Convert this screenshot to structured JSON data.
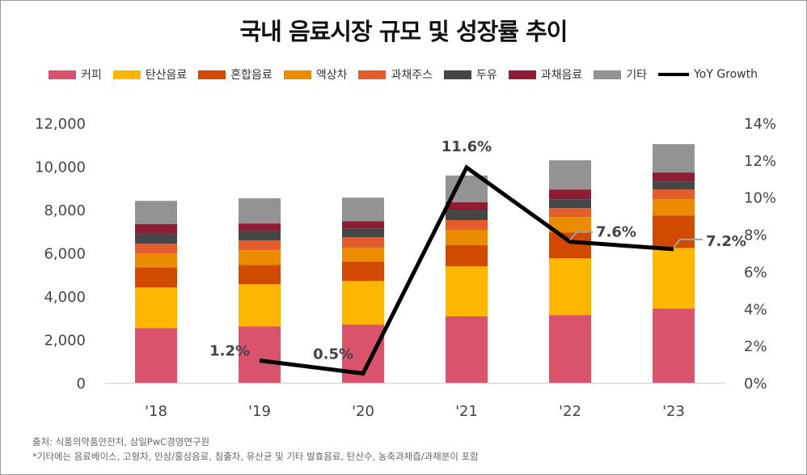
{
  "chart_data": {
    "type": "bar",
    "stacked": true,
    "title": "국내 음료시장 규모 및 성장률 추이",
    "categories": [
      "'18",
      "'19",
      "'20",
      "'21",
      "'22",
      "'23"
    ],
    "series": [
      {
        "name": "커피",
        "color": "#D9536C",
        "values": [
          2530,
          2610,
          2690,
          3070,
          3130,
          3430
        ]
      },
      {
        "name": "탄산음료",
        "color": "#FFB600",
        "values": [
          1870,
          1945,
          2010,
          2310,
          2620,
          2800
        ]
      },
      {
        "name": "혼합음료",
        "color": "#D04A02",
        "values": [
          935,
          895,
          900,
          975,
          1200,
          1500
        ]
      },
      {
        "name": "액상차",
        "color": "#EB8C00",
        "values": [
          635,
          675,
          635,
          710,
          710,
          750
        ]
      },
      {
        "name": "과채주스",
        "color": "#E45C2B",
        "values": [
          450,
          450,
          485,
          450,
          410,
          450
        ]
      },
      {
        "name": "두유",
        "color": "#464646",
        "values": [
          475,
          450,
          410,
          450,
          410,
          375
        ]
      },
      {
        "name": "과채음료",
        "color": "#8E1C35",
        "values": [
          435,
          335,
          335,
          375,
          450,
          410
        ]
      },
      {
        "name": "기타",
        "color": "#939393",
        "values": [
          1075,
          1160,
          1085,
          1235,
          1345,
          1310
        ]
      }
    ],
    "line": {
      "name": "YoY Growth",
      "type": "line",
      "axis": "right",
      "color": "#000000",
      "values": [
        null,
        1.2,
        0.5,
        11.6,
        7.6,
        7.2
      ],
      "labels": [
        "",
        "1.2%",
        "0.5%",
        "11.6%",
        "7.6%",
        "7.2%"
      ]
    },
    "ylim": [
      0,
      12000
    ],
    "yticks": [
      "0",
      "2,000",
      "4,000",
      "6,000",
      "8,000",
      "10,000",
      "12,000"
    ],
    "y2lim": [
      0,
      14
    ],
    "y2ticks": [
      "0%",
      "2%",
      "4%",
      "6%",
      "8%",
      "10%",
      "12%",
      "14%"
    ],
    "grid": false,
    "legend": "top"
  },
  "notes": {
    "source": "출처: 식품의약품안전처, 삼일PwC경영연구원",
    "footnote": "*기타에는 음료베이스, 고형차, 인삼/홍삼음료, 침출차, 유산균 및 기타 발효음료, 탄산수, 농축과채즙/과채분이 포함"
  }
}
